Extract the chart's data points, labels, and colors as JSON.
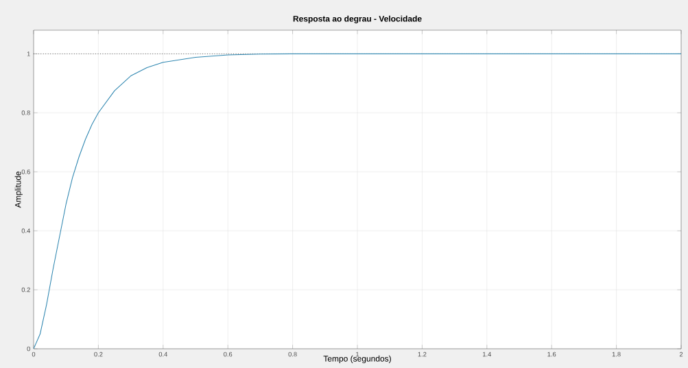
{
  "chart_data": {
    "type": "line",
    "title": "Resposta ao degrau - Velocidade",
    "xlabel": "Tempo (segundos)",
    "ylabel": "Amplitude",
    "x": [
      0,
      0.02,
      0.04,
      0.06,
      0.08,
      0.1,
      0.12,
      0.14,
      0.16,
      0.18,
      0.2,
      0.25,
      0.3,
      0.35,
      0.4,
      0.5,
      0.6,
      0.7,
      0.8,
      1,
      1.5,
      2
    ],
    "series": [
      {
        "color": "#2e86b0",
        "values": [
          0,
          0.05,
          0.15,
          0.27,
          0.38,
          0.49,
          0.58,
          0.65,
          0.71,
          0.76,
          0.8,
          0.875,
          0.925,
          0.953,
          0.971,
          0.988,
          0.996,
          0.999,
          1,
          1,
          1,
          1
        ]
      }
    ],
    "xlim": [
      0,
      2
    ],
    "ylim": [
      0,
      1.08
    ],
    "xticks": [
      0,
      0.2,
      0.4,
      0.6,
      0.8,
      1,
      1.2,
      1.4,
      1.6,
      1.8,
      2
    ],
    "yticks": [
      0,
      0.2,
      0.4,
      0.6,
      0.8,
      1
    ],
    "ref_lines": [
      {
        "axis": "y",
        "value": 1,
        "color": "#000000",
        "line_style": "dotted"
      }
    ],
    "grid": true,
    "marker": "none",
    "line_style": "solid"
  }
}
